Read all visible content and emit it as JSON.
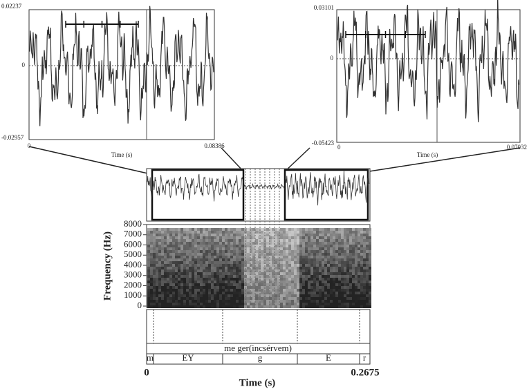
{
  "left_panel": {
    "y_max": "0.02237",
    "y_zero": "0",
    "y_min": "-0.02957",
    "x_start": "0",
    "x_end": "0.08386",
    "x_label": "Time (s)"
  },
  "right_panel": {
    "y_max": "0.03101",
    "y_zero": "0",
    "y_min": "-0.05423",
    "x_start": "0",
    "x_end": "0.07032",
    "x_label": "Time (s)"
  },
  "spectrogram": {
    "y_label": "Frequency (Hz)",
    "ylim": [
      0,
      8000
    ],
    "yticks": [
      0,
      1000,
      2000,
      3000,
      4000,
      5000,
      6000,
      7000,
      8000
    ]
  },
  "tiers": {
    "word": "me ger(incsérvem)",
    "segments": [
      "m",
      "EY",
      "g",
      "E",
      "r"
    ]
  },
  "time_axis": {
    "start": "0",
    "end": "0.2675",
    "label": "Time (s)"
  }
}
